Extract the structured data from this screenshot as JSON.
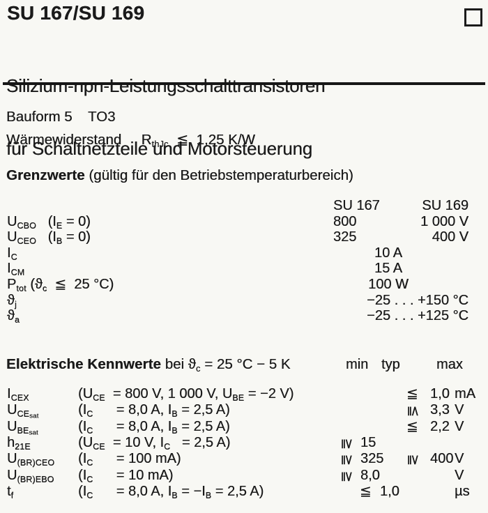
{
  "header": {
    "title": "SU 167/SU 169",
    "subtitle_line1": "Silizium-npn-Leistungsschalttransistoren",
    "subtitle_line2": "für Schaltnetzteile und Motorsteuerung"
  },
  "specs": {
    "bauform": "Bauform 5    TO3",
    "thermal": "Wärmewiderstand     R_{thJc}  ≦  1,25 K/W"
  },
  "grenzwerte": {
    "heading_bold": "Grenzwerte",
    "heading_rest": " (gültig für den Betriebstemperaturbereich)",
    "col_headers": [
      "SU 167",
      "SU 169"
    ],
    "rows": [
      {
        "label": "U_{CBO}   (I_{E} = 0)",
        "layout": "two",
        "left": "800",
        "right": "1 000 V"
      },
      {
        "label": "U_{CEO}   (I_{B} = 0)",
        "layout": "two",
        "left": "325",
        "right": "400 V"
      },
      {
        "label": "I_{C}",
        "layout": "center",
        "value": "10 A"
      },
      {
        "label": "I_{CM}",
        "layout": "center",
        "value": "15 A"
      },
      {
        "label": "P_{tot} (ϑ_{c}  ≦  25 °C)",
        "layout": "center",
        "value": "100 W"
      },
      {
        "label": "ϑ_{j}",
        "layout": "right",
        "value": "−25 . . . +150 °C"
      },
      {
        "label": "ϑ_{a}",
        "layout": "right",
        "value": "−25 . . . +125 °C"
      }
    ]
  },
  "kennwerte": {
    "heading_bold": "Elektrische Kennwerte",
    "heading_rest": " bei ϑ_{c} = 25 °C − 5 K",
    "col_headers": [
      "min",
      "typ",
      "max"
    ],
    "rows": [
      {
        "label": "I_{CEX}",
        "cond": "(U_{CE}  = 800 V, 1 000 V, U_{BE} = −2 V)",
        "min_sym": "",
        "min_val": "",
        "max_sym": "≦",
        "max_rot": false,
        "max_val": "1,0",
        "unit": "mA"
      },
      {
        "label": "U_{CE}~{sat}",
        "cond": "(I_{C}      = 8,0 A, I_{B} = 2,5 A)",
        "min_sym": "",
        "min_val": "",
        "max_sym": "≦",
        "max_rot": true,
        "max_val": "3,3",
        "unit": "V"
      },
      {
        "label": "U_{BE}~{sat}",
        "cond": "(I_{C}      = 8,0 A, I_{B} = 2,5 A)",
        "min_sym": "",
        "min_val": "",
        "max_sym": "≦",
        "max_rot": false,
        "max_val": "2,2",
        "unit": "V"
      },
      {
        "label": "h_{21E}",
        "cond": "(U_{CE}  = 10 V, I_{C}   = 2,5 A)",
        "min_sym": "≧",
        "min_rot": true,
        "min_val": "15",
        "max_sym": "",
        "max_val": "",
        "unit": ""
      },
      {
        "label": "U_{(BR)CEO}",
        "cond": "(I_{C}      = 100 mA)",
        "min_sym": "≧",
        "min_rot": true,
        "min_val": "325",
        "max_sym": "≧",
        "max_rot": true,
        "max_val": "400",
        "unit": "V"
      },
      {
        "label": "U_{(BR)EBO}",
        "cond": "(I_{C}      = 10 mA)",
        "min_sym": "≧",
        "min_rot": true,
        "min_val": "8,0",
        "max_sym": "",
        "max_val": "",
        "unit": "V"
      },
      {
        "label": "t_{f}",
        "cond": "(I_{C}      = 8,0 A, I_{B} = −I_{B} = 2,5 A)",
        "min_sym": "≦",
        "min_rot": false,
        "min_val": "1,0",
        "max_sym": "",
        "max_val": "",
        "unit": "µs",
        "shift_min": true
      }
    ]
  }
}
